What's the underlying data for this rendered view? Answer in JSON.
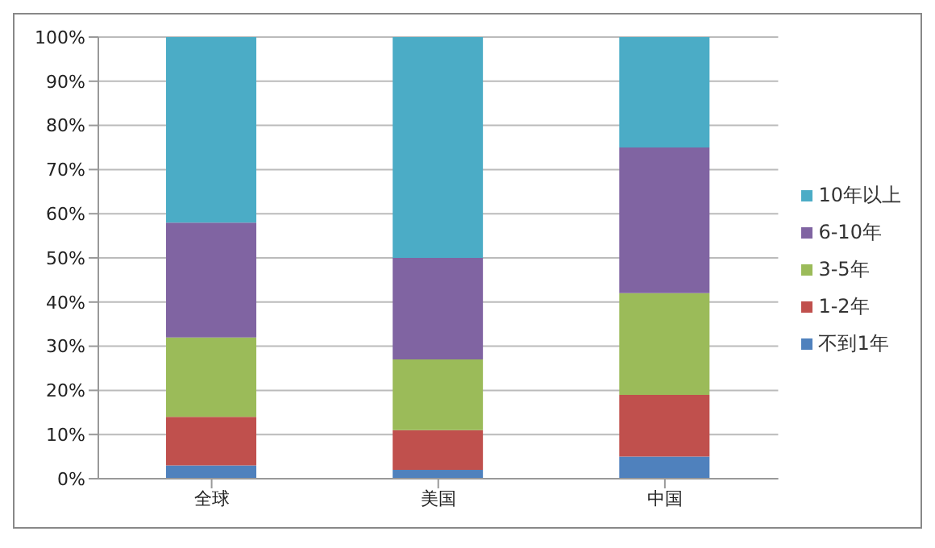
{
  "chart_data": {
    "type": "bar",
    "stacked": true,
    "categories": [
      "全球",
      "美国",
      "中国"
    ],
    "series": [
      {
        "name": "不到1年",
        "color": "#4f81bd",
        "values": [
          3,
          2,
          5
        ]
      },
      {
        "name": "1-2年",
        "color": "#c0504d",
        "values": [
          11,
          9,
          14
        ]
      },
      {
        "name": "3-5年",
        "color": "#9bbb59",
        "values": [
          18,
          16,
          23
        ]
      },
      {
        "name": "6-10年",
        "color": "#8064a2",
        "values": [
          26,
          23,
          33
        ]
      },
      {
        "name": "10年以上",
        "color": "#4bacc6",
        "values": [
          42,
          50,
          25
        ]
      }
    ],
    "ylim": [
      0,
      100
    ],
    "yticks": [
      {
        "value": 0,
        "label": "0%"
      },
      {
        "value": 10,
        "label": "10%"
      },
      {
        "value": 20,
        "label": "20%"
      },
      {
        "value": 30,
        "label": "30%"
      },
      {
        "value": 40,
        "label": "40%"
      },
      {
        "value": 50,
        "label": "50%"
      },
      {
        "value": 60,
        "label": "60%"
      },
      {
        "value": 70,
        "label": "70%"
      },
      {
        "value": 80,
        "label": "80%"
      },
      {
        "value": 90,
        "label": "90%"
      },
      {
        "value": 100,
        "label": "100%"
      }
    ],
    "grid": "y",
    "legend": "right"
  }
}
